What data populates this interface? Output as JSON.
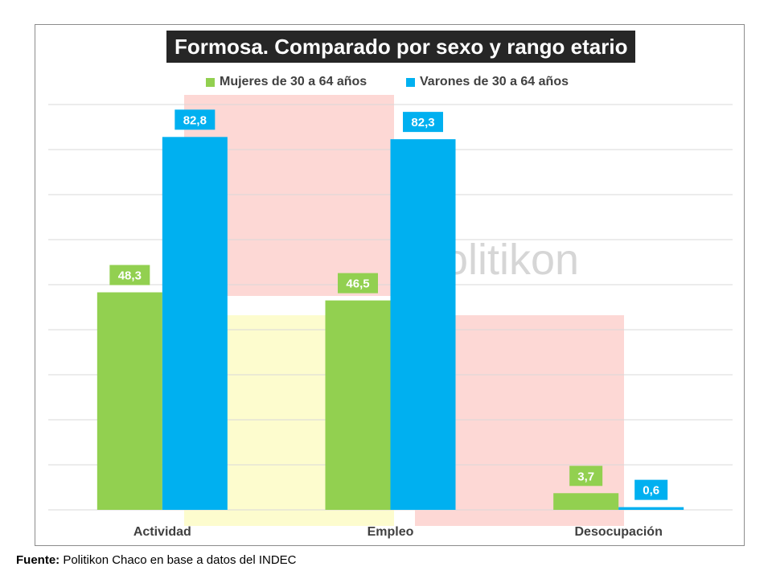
{
  "chart_data": {
    "type": "bar",
    "title": "Formosa. Comparado por sexo y rango etario",
    "categories": [
      "Actividad",
      "Empleo",
      "Desocupación"
    ],
    "series": [
      {
        "name": "Mujeres de 30 a 64 años",
        "values": [
          48.3,
          46.5,
          3.7
        ],
        "labels": [
          "48,3",
          "46,5",
          "3,7"
        ],
        "color": "#92d050"
      },
      {
        "name": "Varones de 30 a 64 años",
        "values": [
          82.8,
          82.3,
          0.6
        ],
        "labels": [
          "82,8",
          "82,3",
          "0,6"
        ],
        "color": "#00b0f0"
      }
    ],
    "ylim": [
      0,
      90
    ],
    "grid": true,
    "legend_position": "top",
    "watermark": "olitikon"
  },
  "source": {
    "label": "Fuente:",
    "text": " Politikon Chaco en base a datos del INDEC"
  },
  "colors": {
    "title_bg": "#262626",
    "grid": "#d9d9d9",
    "watermark_red": "#fdd8d5",
    "watermark_yellow": "#fdfcce"
  }
}
